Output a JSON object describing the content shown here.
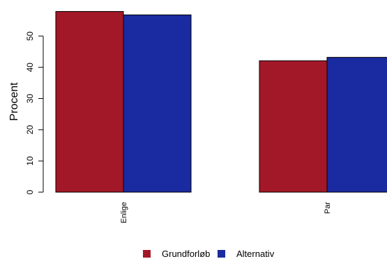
{
  "chart_data": {
    "type": "bar",
    "title": "",
    "xlabel": "",
    "ylabel": "Procent",
    "ylim": [
      0,
      58
    ],
    "yticks": [
      0,
      10,
      20,
      30,
      40,
      50
    ],
    "categories": [
      "Enlige",
      "Par"
    ],
    "series": [
      {
        "name": "Grundforløb",
        "color": "#a31828",
        "values": [
          57.9,
          42.1
        ]
      },
      {
        "name": "Alternativ",
        "color": "#1a2aa0",
        "values": [
          56.8,
          43.2
        ]
      }
    ],
    "grid": false,
    "legend_position": "bottom"
  }
}
